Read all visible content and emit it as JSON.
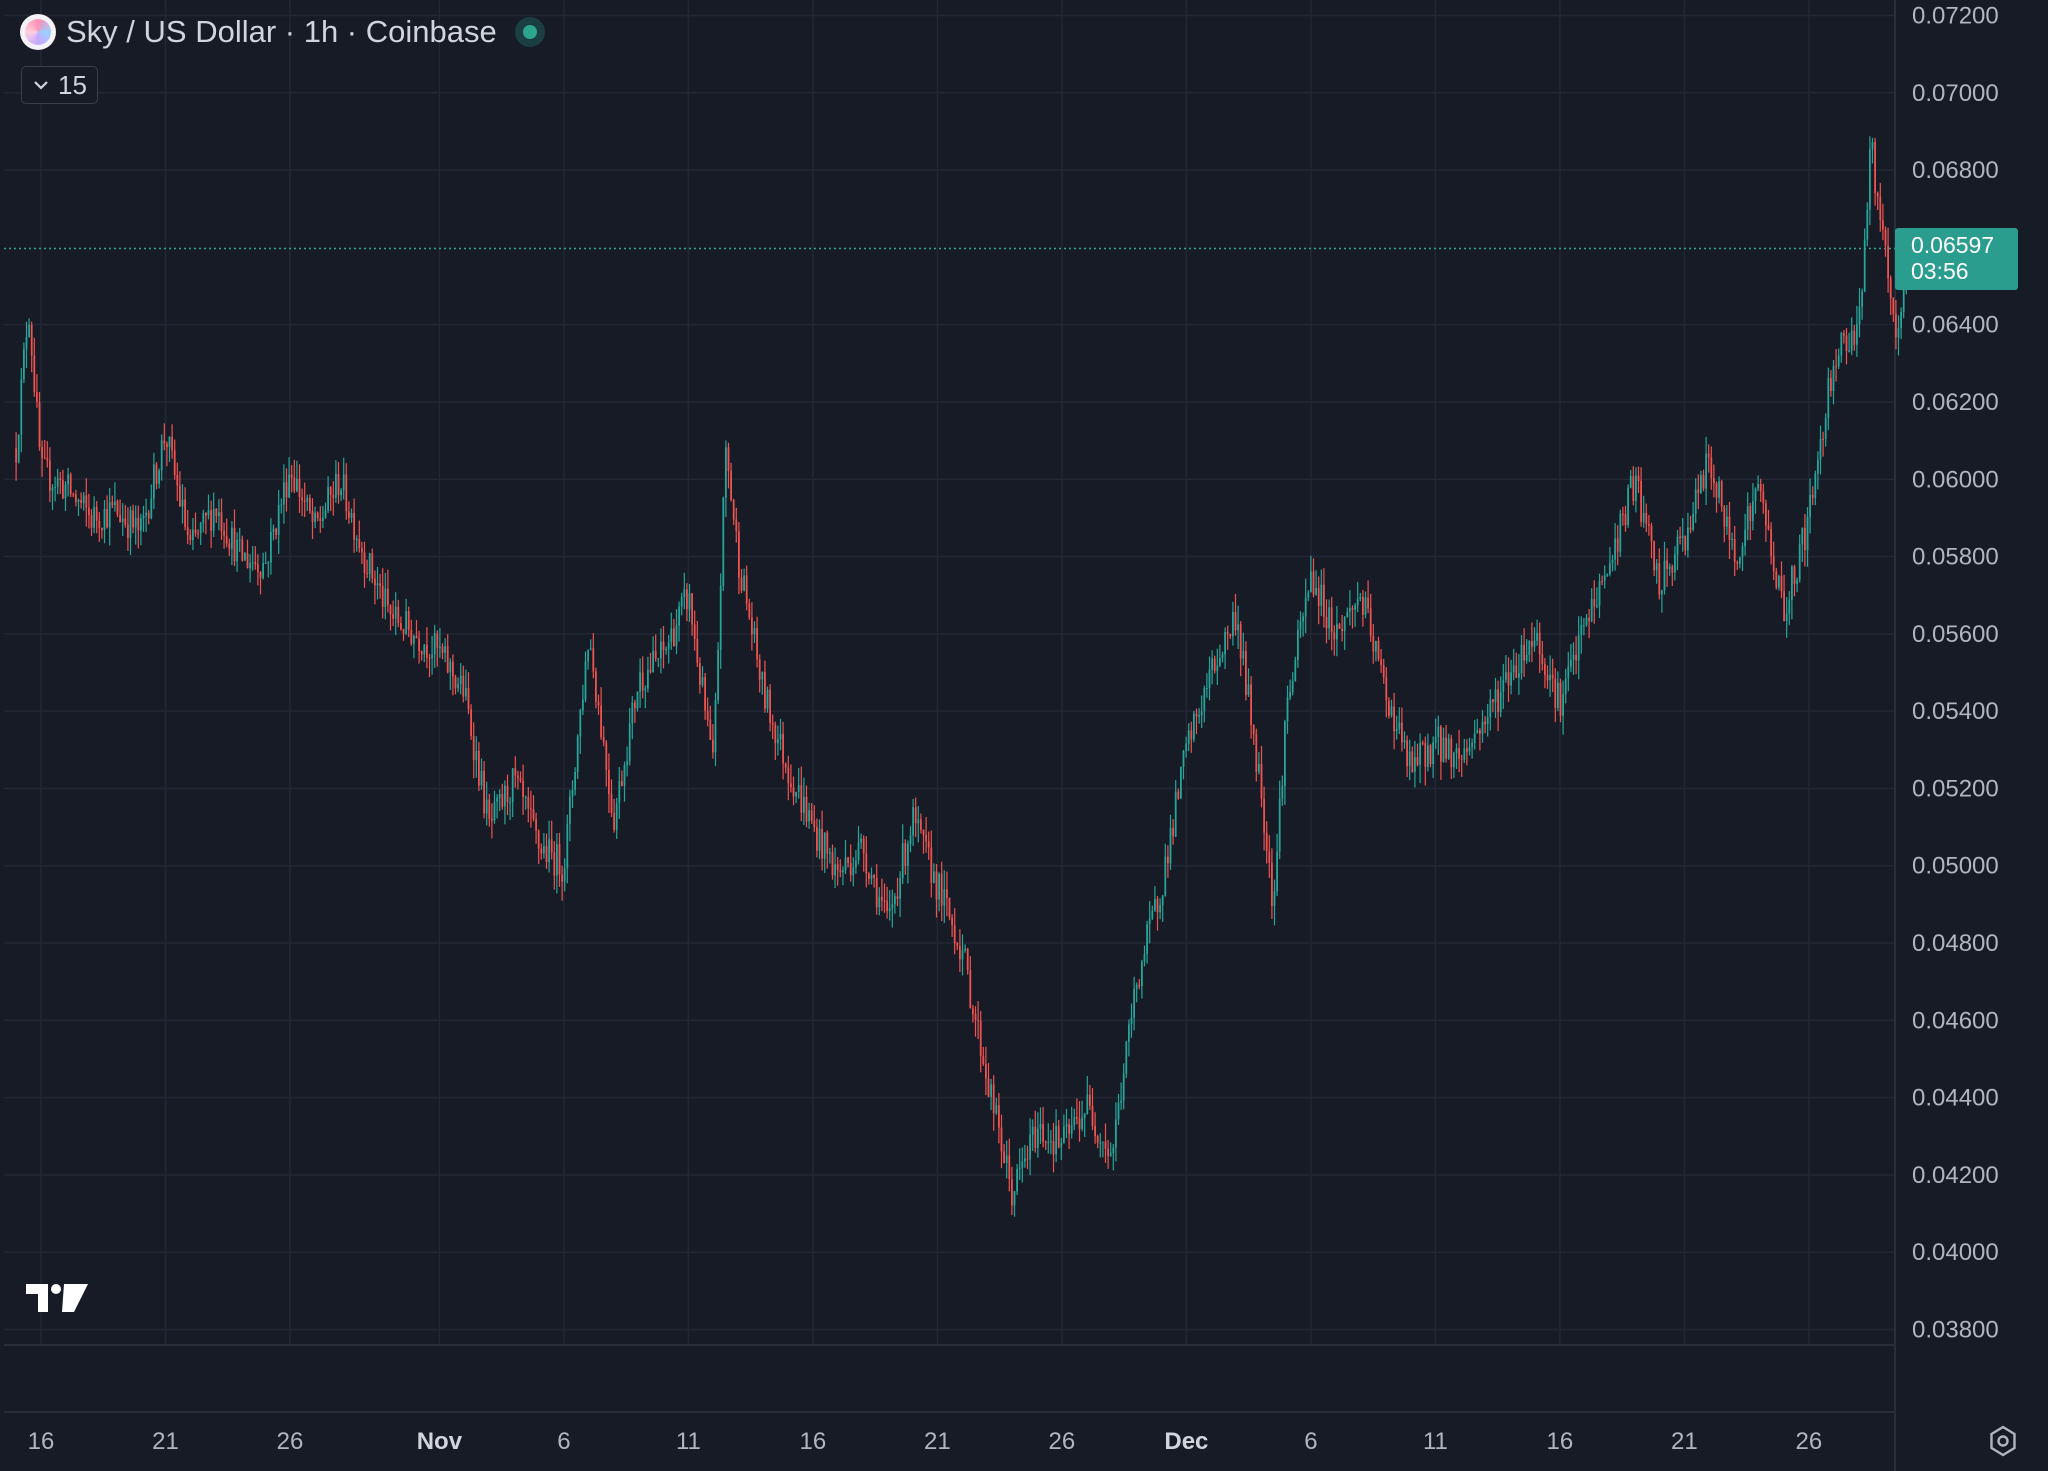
{
  "header": {
    "title": "Sky / US Dollar · 1h · Coinbase",
    "indicator_toggle_label": "15"
  },
  "price_tag": {
    "price": "0.06597",
    "countdown": "03:56"
  },
  "colors": {
    "background": "#171b26",
    "grid": "#232734",
    "up": "#26a69a",
    "down": "#ef5350",
    "axis_text": "#b2b5be",
    "price_line": "#2fa58f"
  },
  "chart_data": {
    "type": "candlestick",
    "symbol": "Sky / US Dollar",
    "interval": "1h",
    "exchange": "Coinbase",
    "last_price": 0.06597,
    "ylim": [
      0.0376,
      0.0724
    ],
    "y_ticks": [
      "0.07200",
      "0.07000",
      "0.06800",
      "0.06400",
      "0.06200",
      "0.06000",
      "0.05800",
      "0.05600",
      "0.05400",
      "0.05200",
      "0.05000",
      "0.04800",
      "0.04600",
      "0.04400",
      "0.04200",
      "0.04000",
      "0.03800"
    ],
    "x_ticks": [
      {
        "label": "16",
        "date": "2024-10-16"
      },
      {
        "label": "21",
        "date": "2024-10-21"
      },
      {
        "label": "26",
        "date": "2024-10-26"
      },
      {
        "label": "Nov",
        "date": "2024-11-01"
      },
      {
        "label": "6",
        "date": "2024-11-06"
      },
      {
        "label": "11",
        "date": "2024-11-11"
      },
      {
        "label": "16",
        "date": "2024-11-16"
      },
      {
        "label": "21",
        "date": "2024-11-21"
      },
      {
        "label": "26",
        "date": "2024-11-26"
      },
      {
        "label": "Dec",
        "date": "2024-12-01"
      },
      {
        "label": "6",
        "date": "2024-12-06"
      },
      {
        "label": "11",
        "date": "2024-12-11"
      },
      {
        "label": "16",
        "date": "2024-12-16"
      },
      {
        "label": "21",
        "date": "2024-12-21"
      },
      {
        "label": "26",
        "date": "2024-12-26"
      }
    ],
    "grid": true,
    "price_path": [
      [
        "2024-10-15",
        0.0608
      ],
      [
        "2024-10-15T12:00",
        0.0645
      ],
      [
        "2024-10-16",
        0.0602
      ],
      [
        "2024-10-17",
        0.0598
      ],
      [
        "2024-10-18",
        0.059
      ],
      [
        "2024-10-19",
        0.0592
      ],
      [
        "2024-10-20",
        0.0586
      ],
      [
        "2024-10-21",
        0.0612
      ],
      [
        "2024-10-22",
        0.0582
      ],
      [
        "2024-10-23",
        0.0593
      ],
      [
        "2024-10-24",
        0.058
      ],
      [
        "2024-10-25",
        0.0578
      ],
      [
        "2024-10-26",
        0.0603
      ],
      [
        "2024-10-27",
        0.0587
      ],
      [
        "2024-10-28",
        0.06
      ],
      [
        "2024-10-29",
        0.058
      ],
      [
        "2024-10-30",
        0.0565
      ],
      [
        "2024-10-31",
        0.056
      ],
      [
        "2024-11-01",
        0.0555
      ],
      [
        "2024-11-02",
        0.0545
      ],
      [
        "2024-11-03",
        0.051
      ],
      [
        "2024-11-04",
        0.0522
      ],
      [
        "2024-11-05",
        0.0505
      ],
      [
        "2024-11-06",
        0.05
      ],
      [
        "2024-11-07",
        0.056
      ],
      [
        "2024-11-08",
        0.0512
      ],
      [
        "2024-11-09",
        0.0548
      ],
      [
        "2024-11-10",
        0.0555
      ],
      [
        "2024-11-11",
        0.057
      ],
      [
        "2024-11-12",
        0.0525
      ],
      [
        "2024-11-12T12:00",
        0.0608
      ],
      [
        "2024-11-13",
        0.058
      ],
      [
        "2024-11-14",
        0.0545
      ],
      [
        "2024-11-15",
        0.0525
      ],
      [
        "2024-11-16",
        0.051
      ],
      [
        "2024-11-17",
        0.0498
      ],
      [
        "2024-11-18",
        0.0505
      ],
      [
        "2024-11-19",
        0.0485
      ],
      [
        "2024-11-20",
        0.0512
      ],
      [
        "2024-11-21",
        0.0495
      ],
      [
        "2024-11-22",
        0.0478
      ],
      [
        "2024-11-23",
        0.0445
      ],
      [
        "2024-11-24",
        0.0415
      ],
      [
        "2024-11-25",
        0.0432
      ],
      [
        "2024-11-26",
        0.0428
      ],
      [
        "2024-11-27",
        0.0438
      ],
      [
        "2024-11-28",
        0.0425
      ],
      [
        "2024-11-29",
        0.047
      ],
      [
        "2024-11-30",
        0.0495
      ],
      [
        "2024-12-01",
        0.053
      ],
      [
        "2024-12-02",
        0.055
      ],
      [
        "2024-12-03",
        0.0565
      ],
      [
        "2024-12-04",
        0.052
      ],
      [
        "2024-12-04T12:00",
        0.049
      ],
      [
        "2024-12-05",
        0.054
      ],
      [
        "2024-12-06",
        0.0575
      ],
      [
        "2024-12-07",
        0.056
      ],
      [
        "2024-12-08",
        0.057
      ],
      [
        "2024-12-09",
        0.0545
      ],
      [
        "2024-12-10",
        0.0525
      ],
      [
        "2024-12-11",
        0.0532
      ],
      [
        "2024-12-12",
        0.0528
      ],
      [
        "2024-12-13",
        0.0538
      ],
      [
        "2024-12-14",
        0.055
      ],
      [
        "2024-12-15",
        0.056
      ],
      [
        "2024-12-16",
        0.0542
      ],
      [
        "2024-12-17",
        0.0562
      ],
      [
        "2024-12-18",
        0.0578
      ],
      [
        "2024-12-19",
        0.06
      ],
      [
        "2024-12-20",
        0.0572
      ],
      [
        "2024-12-21",
        0.0585
      ],
      [
        "2024-12-22",
        0.0605
      ],
      [
        "2024-12-23",
        0.058
      ],
      [
        "2024-12-24",
        0.0598
      ],
      [
        "2024-12-25",
        0.0565
      ],
      [
        "2024-12-26",
        0.059
      ],
      [
        "2024-12-27",
        0.0632
      ],
      [
        "2024-12-28",
        0.064
      ],
      [
        "2024-12-28T12:00",
        0.0686
      ],
      [
        "2024-12-29",
        0.066
      ],
      [
        "2024-12-29T12:00",
        0.0634
      ],
      [
        "2024-12-30",
        0.066
      ]
    ]
  }
}
